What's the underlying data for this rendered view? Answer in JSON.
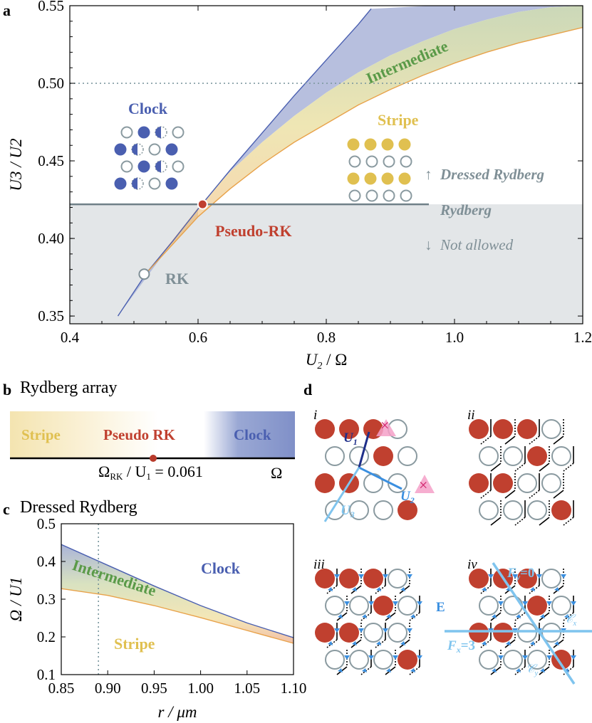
{
  "panels": {
    "a": "a",
    "b": "b",
    "c": "c",
    "d": "d",
    "b_title": "Rydberg array",
    "c_title": "Dressed Rydberg"
  },
  "chart_data": [
    {
      "id": "a",
      "type": "area",
      "xlabel_main": "U",
      "xlabel_sub": "2",
      "xlabel_rest": " / Ω",
      "ylabel": "U3 / U2",
      "xlim": [
        0.4,
        1.2
      ],
      "ylim": [
        0.345,
        0.55
      ],
      "xticks": [
        "0.4",
        "0.6",
        "0.8",
        "1.0",
        "1.2"
      ],
      "yticks": [
        "0.35",
        "0.40",
        "0.45",
        "0.50",
        "0.55"
      ],
      "xtick_values": [
        0.4,
        0.6,
        0.8,
        1.0,
        1.2
      ],
      "ytick_values": [
        0.35,
        0.4,
        0.45,
        0.5,
        0.55
      ],
      "dotted_line_y": 0.5,
      "rydberg_line_y": 0.422,
      "rydberg_line_x_end": 0.96,
      "boundary_clock": {
        "x": [
          0.475,
          0.52,
          0.56,
          0.6,
          0.65,
          0.7,
          0.75,
          0.8,
          0.85,
          0.87
        ],
        "y": [
          0.35,
          0.378,
          0.398,
          0.419,
          0.444,
          0.468,
          0.492,
          0.515,
          0.538,
          0.548
        ]
      },
      "boundary_stripe": {
        "x": [
          0.52,
          0.56,
          0.6,
          0.65,
          0.7,
          0.75,
          0.8,
          0.85,
          0.9,
          0.95,
          1.0,
          1.05,
          1.1,
          1.15,
          1.2
        ],
        "y": [
          0.378,
          0.396,
          0.414,
          0.432,
          0.448,
          0.462,
          0.474,
          0.486,
          0.496,
          0.505,
          0.513,
          0.52,
          0.526,
          0.531,
          0.536
        ]
      },
      "intermediate_top": {
        "x": [
          0.6,
          0.65,
          0.7,
          0.75,
          0.8,
          0.85,
          0.9,
          0.95,
          1.0,
          1.05,
          1.1,
          1.15,
          1.2
        ],
        "y": [
          0.42,
          0.443,
          0.462,
          0.479,
          0.494,
          0.507,
          0.518,
          0.527,
          0.535,
          0.541,
          0.546,
          0.549,
          0.55
        ]
      },
      "points": [
        {
          "name": "RK",
          "x": 0.516,
          "y": 0.377
        },
        {
          "name": "Pseudo-RK",
          "x": 0.607,
          "y": 0.422
        }
      ],
      "labels": {
        "clock": "Clock",
        "stripe": "Stripe",
        "intermediate": "Intermediate",
        "pseudo_rk": "Pseudo-RK",
        "rk": "RK",
        "dressed_rydberg": "Dressed Rydberg",
        "rydberg": "Rydberg",
        "not_allowed": "Not allowed",
        "arrow_up": "↑",
        "arrow_down": "↓"
      },
      "colors": {
        "clock": "#4a5fb0",
        "stripe": "#e0c050",
        "intermediate": "#5a9a48",
        "pseudo": "#c0402f",
        "gray": "#7f8f96",
        "region": "#e3e6e8"
      }
    },
    {
      "id": "b",
      "type": "bar",
      "labels": {
        "stripe": "Stripe",
        "pseudo_rk": "Pseudo RK",
        "clock": "Clock",
        "omega": "Ω"
      },
      "critical_label_main": "Ω",
      "critical_label_sub": "RK",
      "critical_label_rest": " / U",
      "critical_label_sub2": "1",
      "critical_label_value": " = 0.061"
    },
    {
      "id": "c",
      "type": "area",
      "xlabel": "r / μm",
      "ylabel": "Ω / U1",
      "xlim": [
        0.85,
        1.1
      ],
      "ylim": [
        0.1,
        0.5
      ],
      "xticks": [
        "0.85",
        "0.90",
        "0.95",
        "1.00",
        "1.05",
        "1.10"
      ],
      "yticks": [
        "0.1",
        "0.2",
        "0.3",
        "0.4",
        "0.5"
      ],
      "xtick_values": [
        0.85,
        0.9,
        0.95,
        1.0,
        1.05,
        1.1
      ],
      "ytick_values": [
        0.1,
        0.2,
        0.3,
        0.4,
        0.5
      ],
      "dotted_line_x": 0.89,
      "upper": {
        "x": [
          0.85,
          0.9,
          0.95,
          1.0,
          1.05,
          1.1
        ],
        "y": [
          0.445,
          0.39,
          0.335,
          0.283,
          0.237,
          0.198
        ]
      },
      "lower": {
        "x": [
          0.85,
          0.9,
          0.95,
          1.0,
          1.05,
          1.1
        ],
        "y": [
          0.328,
          0.31,
          0.283,
          0.251,
          0.217,
          0.183
        ]
      },
      "labels": {
        "clock": "Clock",
        "intermediate": "Intermediate",
        "stripe": "Stripe"
      }
    }
  ],
  "panel_d": {
    "subpanels": [
      "i",
      "ii",
      "iii",
      "iv"
    ],
    "u1": "U",
    "u1_sub": "1",
    "u2": "U",
    "u2_sub": "2",
    "u3": "U",
    "u3_sub": "3",
    "e_label": "E",
    "fy_label": "F",
    "fy_sub": "y",
    "fy_value": "=0",
    "fx_label": "F",
    "fx_sub": "x",
    "fx_value": "=3",
    "cx_label": "𝒞",
    "cx_sub": "x",
    "cy_label": "𝒞",
    "cy_sub": "y"
  }
}
